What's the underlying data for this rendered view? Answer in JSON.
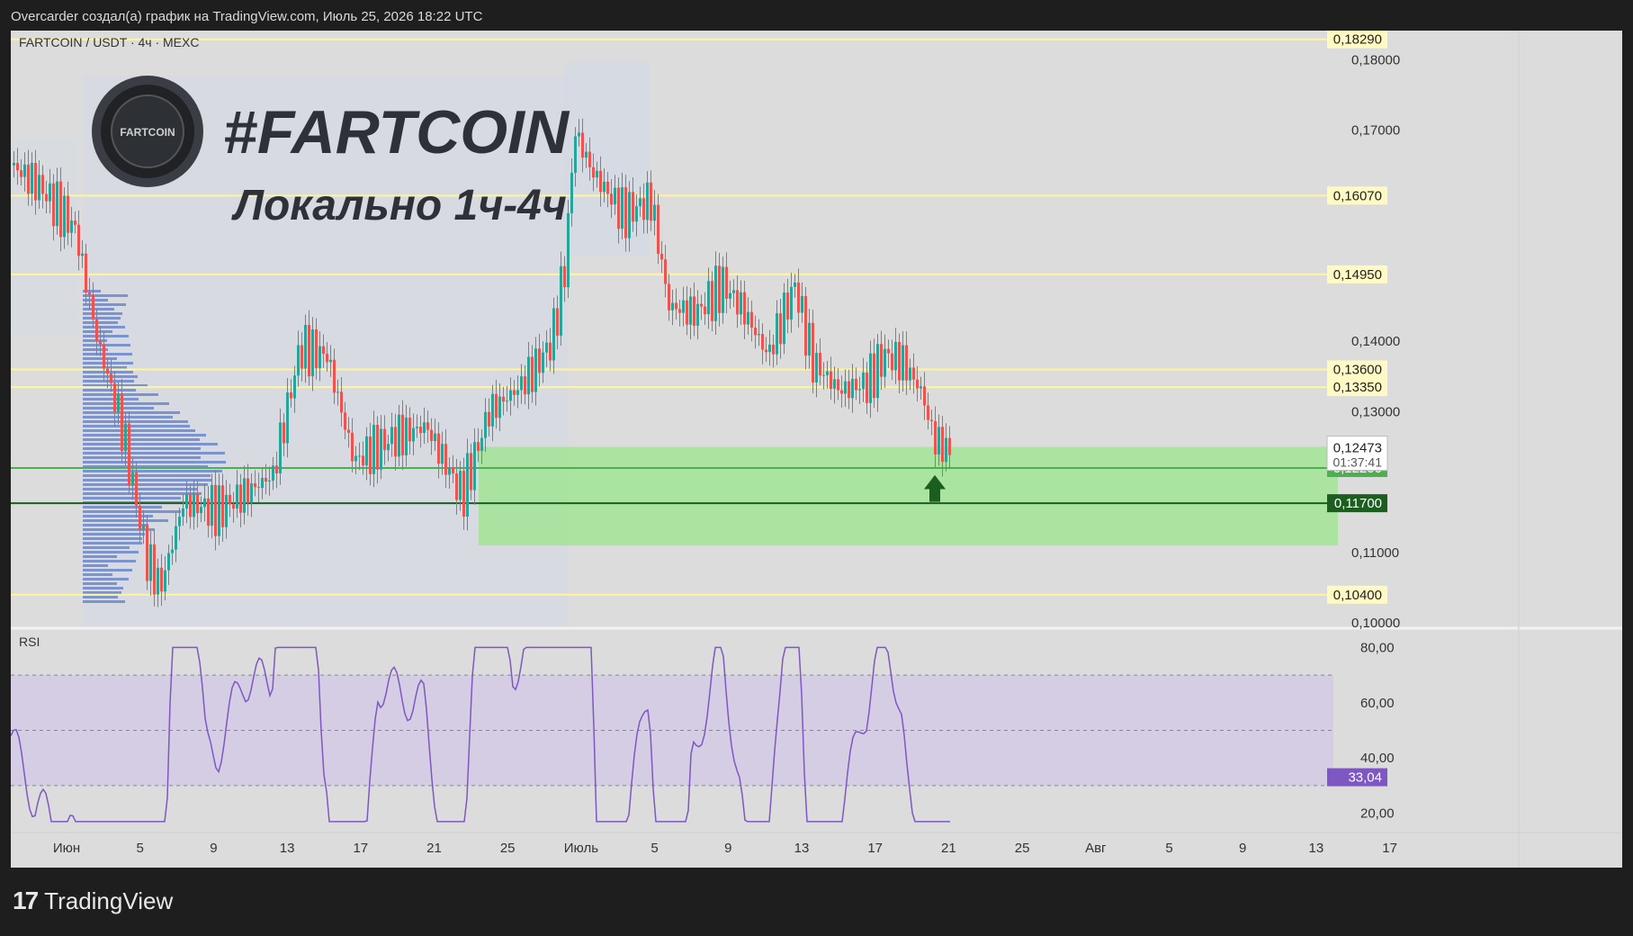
{
  "header": {
    "text": "Overcarder создал(а) график на TradingView.com, Июль 25, 2026 18:22 UTC"
  },
  "footer": {
    "brand": "TradingView"
  },
  "overlay": {
    "hashtag": "#FARTCOIN",
    "subtitle": "Локально 1ч-4ч",
    "coin_logo_text": "FARTCOIN"
  },
  "chart_data": {
    "type": "candlestick",
    "symbol_label": "FARTCOIN / USDT · 4ч · MEXC",
    "price_axis_ticks": [
      "0,18000",
      "0,17000",
      "0,14000",
      "0,13000",
      "0,11000",
      "0,10000"
    ],
    "price_ylim": [
      0.0995,
      0.1835
    ],
    "level_lines": [
      {
        "value": 0.1829,
        "label": "0,18290",
        "color": "#fff9c4"
      },
      {
        "value": 0.1607,
        "label": "0,16070",
        "color": "#fff9c4"
      },
      {
        "value": 0.1495,
        "label": "0,14950",
        "color": "#fff9c4"
      },
      {
        "value": 0.136,
        "label": "0,13600",
        "color": "#fff9c4"
      },
      {
        "value": 0.1335,
        "label": "0,13350",
        "color": "#fff9c4"
      },
      {
        "value": 0.104,
        "label": "0,10400",
        "color": "#fff9c4"
      }
    ],
    "current_price": {
      "value": 0.12473,
      "label": "0,12473",
      "countdown": "01:37:41"
    },
    "support_lines": [
      {
        "value": 0.122,
        "label": "0,12200",
        "color": "#4caf50"
      },
      {
        "value": 0.117,
        "label": "0,11700",
        "color": "#1b5e20"
      }
    ],
    "support_zone": {
      "from": 0.111,
      "to": 0.125,
      "color": "#a5e39a"
    },
    "time_axis_labels": [
      "Июн",
      "5",
      "9",
      "13",
      "17",
      "21",
      "25",
      "Июль",
      "5",
      "9",
      "13",
      "17",
      "21",
      "25",
      "Авг",
      "5",
      "9",
      "13",
      "17"
    ],
    "rsi": {
      "label": "RSI",
      "current_label": "33,04",
      "current_value": 33.04,
      "ticks": [
        "80,00",
        "60,00",
        "40,00",
        "20,00"
      ],
      "ylim": [
        15,
        85
      ],
      "band": [
        30,
        70
      ],
      "mid": 50
    },
    "colors": {
      "up": "#26a69a",
      "down": "#ef5350",
      "rsi_line": "#7e57c2",
      "volume_profile": "#5c7cc9"
    }
  }
}
